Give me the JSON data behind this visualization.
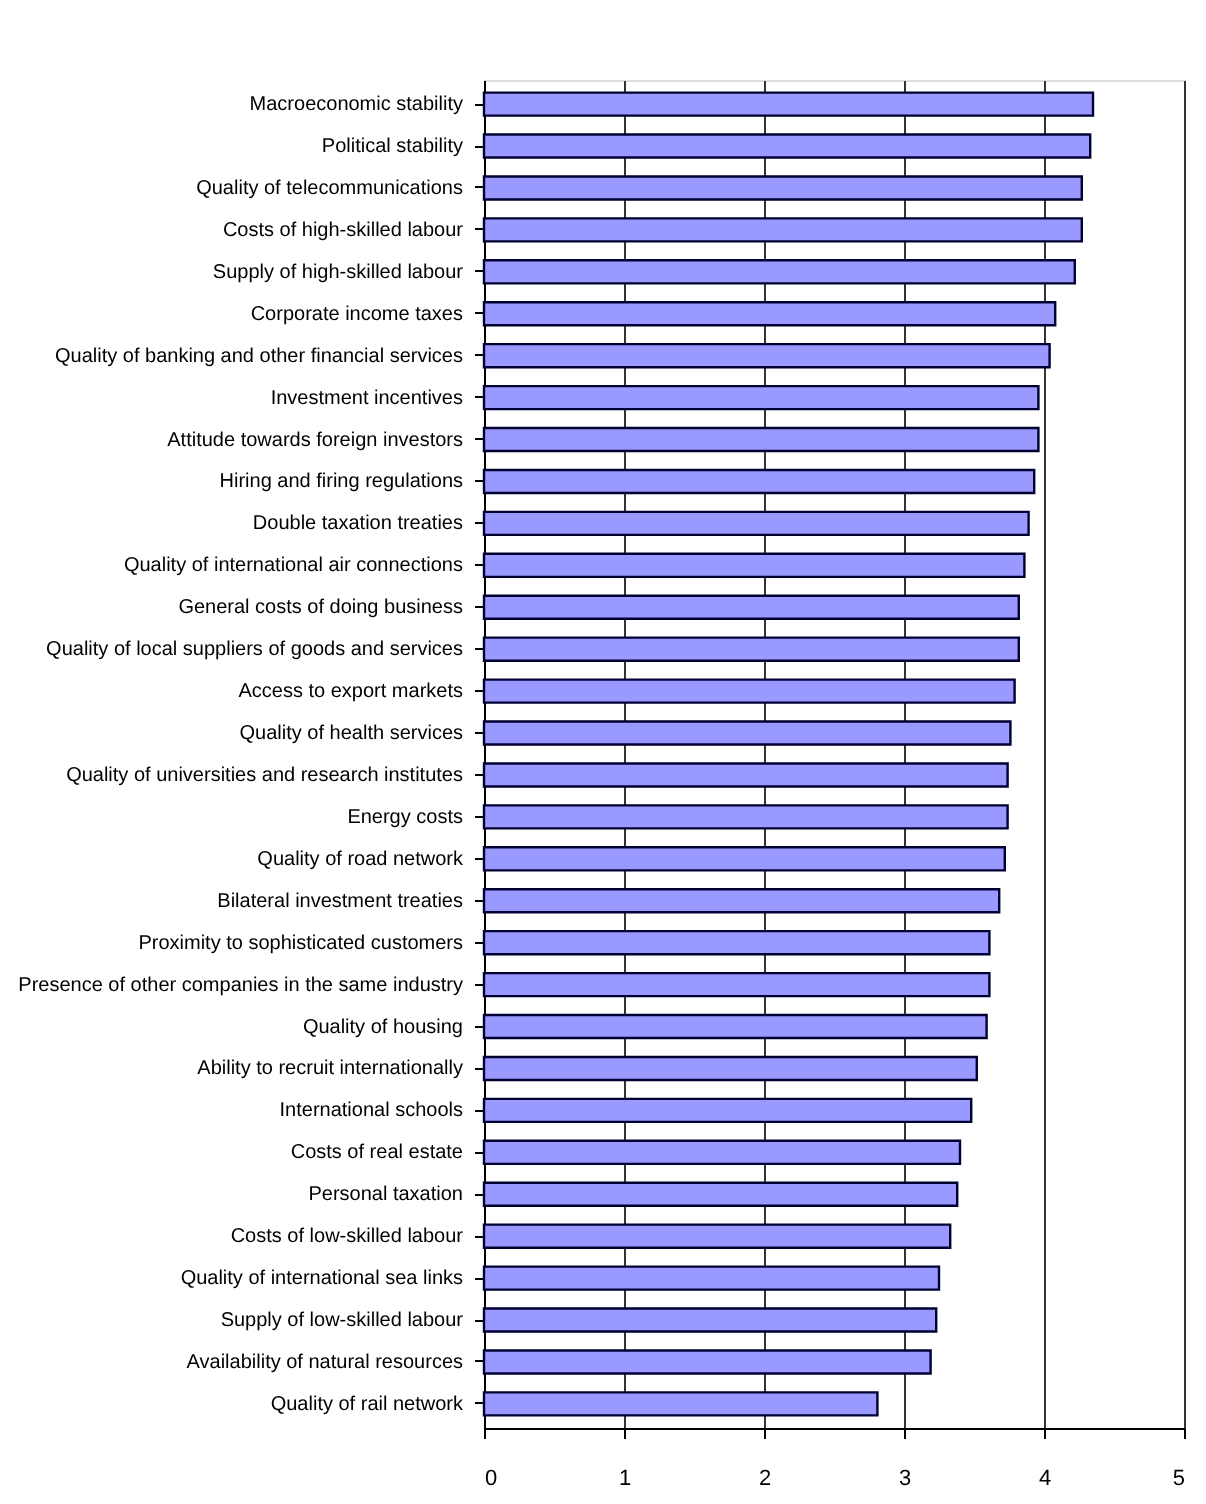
{
  "chart_data": {
    "type": "bar",
    "orientation": "horizontal",
    "categories": [
      "Macroeconomic stability",
      "Political stability",
      "Quality of telecommunications",
      "Costs of high-skilled labour",
      "Supply of high-skilled labour",
      "Corporate income taxes",
      "Quality of banking and other financial services",
      "Investment incentives",
      "Attitude towards foreign investors",
      "Hiring and firing regulations",
      "Double taxation treaties",
      "Quality of international air connections",
      "General costs of doing business",
      "Quality of local suppliers of goods and services",
      "Access to export markets",
      "Quality of health services",
      "Quality of universities and research institutes",
      "Energy costs",
      "Quality of road network",
      "Bilateral investment treaties",
      "Proximity to sophisticated customers",
      "Presence of other companies in the same industry",
      "Quality of housing",
      "Ability to recruit internationally",
      "International schools",
      "Costs of real estate",
      "Personal taxation",
      "Costs of low-skilled labour",
      "Quality of international sea links",
      "Supply of low-skilled labour",
      "Availability of natural resources",
      "Quality of rail network"
    ],
    "values": [
      4.35,
      4.33,
      4.27,
      4.27,
      4.22,
      4.08,
      4.04,
      3.96,
      3.96,
      3.93,
      3.89,
      3.86,
      3.82,
      3.82,
      3.79,
      3.76,
      3.74,
      3.74,
      3.72,
      3.68,
      3.61,
      3.61,
      3.59,
      3.52,
      3.48,
      3.4,
      3.38,
      3.33,
      3.25,
      3.23,
      3.19,
      2.81
    ],
    "color": "#9999ff",
    "xlim": [
      0,
      5
    ],
    "xticks": [
      0,
      1,
      2,
      3,
      4,
      5
    ],
    "grid": "x"
  }
}
